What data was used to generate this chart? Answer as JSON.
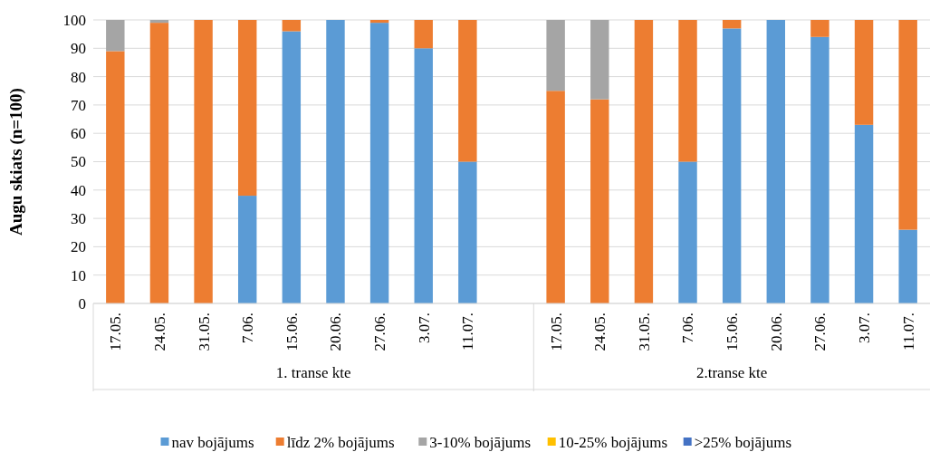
{
  "chart_data": {
    "type": "bar",
    "stacked": true,
    "ylabel": "Augu skiats (n=100)",
    "categories": [
      "17.05.",
      "24.05.",
      "31.05.",
      "7.06.",
      "15.06.",
      "20.06.",
      "27.06.",
      "3.07.",
      "11.07.",
      null,
      "17.05.",
      "24.05.",
      "31.05.",
      "7.06.",
      "15.06.",
      "20.06.",
      "27.06.",
      "3.07.",
      "11.07."
    ],
    "series": [
      {
        "name": "nav bojājums",
        "color": "#5b9bd5",
        "values": [
          0,
          0,
          0,
          38,
          96,
          100,
          99,
          90,
          50,
          null,
          0,
          0,
          0,
          50,
          97,
          100,
          94,
          63,
          26
        ]
      },
      {
        "name": "līdz 2% bojājums",
        "color": "#ed7d31",
        "values": [
          89,
          99,
          100,
          62,
          4,
          0,
          1,
          10,
          50,
          null,
          75,
          72,
          100,
          50,
          3,
          0,
          6,
          37,
          74
        ]
      },
      {
        "name": "3-10% bojājums",
        "color": "#a5a5a5",
        "values": [
          11,
          1,
          0,
          0,
          0,
          0,
          0,
          0,
          0,
          null,
          25,
          28,
          0,
          0,
          0,
          0,
          0,
          0,
          0
        ]
      },
      {
        "name": "10-25% bojājums",
        "color": "#ffc000",
        "values": [
          0,
          0,
          0,
          0,
          0,
          0,
          0,
          0,
          0,
          null,
          0,
          0,
          0,
          0,
          0,
          0,
          0,
          0,
          0
        ]
      },
      {
        "name": ">25% bojājums",
        "color": "#4472c4",
        "values": [
          0,
          0,
          0,
          0,
          0,
          0,
          0,
          0,
          0,
          null,
          0,
          0,
          0,
          0,
          0,
          0,
          0,
          0,
          0
        ]
      }
    ],
    "annotations": [
      "1. transe kte",
      "2.transe kte"
    ],
    "ylim": [
      0,
      100
    ],
    "yticks": [
      0,
      10,
      20,
      30,
      40,
      50,
      60,
      70,
      80,
      90,
      100
    ],
    "grid": "y",
    "legend": "bottom"
  }
}
